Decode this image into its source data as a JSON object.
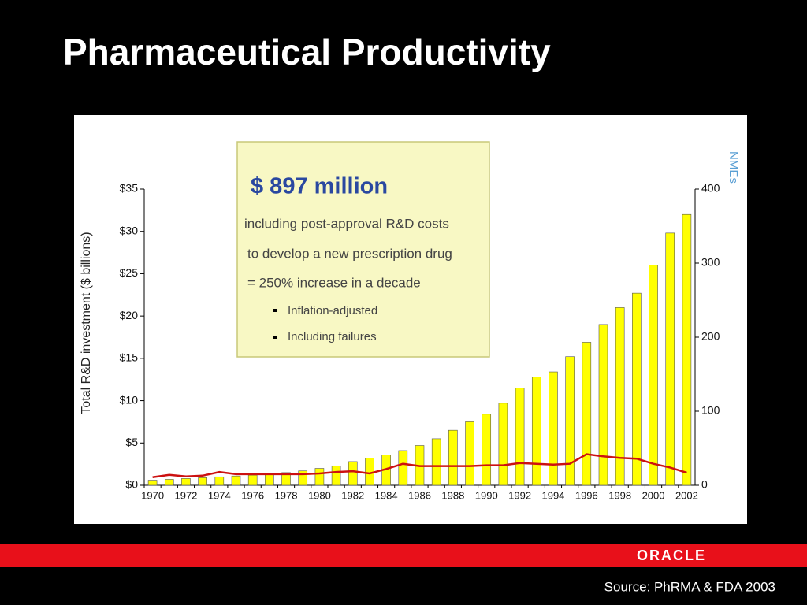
{
  "chart_data": {
    "type": "bar",
    "title": "Pharmaceutical Productivity",
    "y_label": "Total R&D investment ($ billions)",
    "y2_label": "NMEs",
    "categories": [
      "1970",
      null,
      "1972",
      null,
      "1974",
      null,
      "1976",
      null,
      "1978",
      null,
      "1980",
      null,
      "1982",
      null,
      "1984",
      null,
      "1986",
      null,
      "1988",
      null,
      "1990",
      null,
      "1992",
      null,
      "1994",
      null,
      "1996",
      null,
      "1998",
      null,
      "2000",
      null,
      "2002"
    ],
    "series": [
      {
        "name": "R&D investment",
        "type": "bar",
        "color": "#ffff00",
        "values": [
          0.6,
          0.7,
          0.8,
          0.9,
          1.0,
          1.1,
          1.2,
          1.3,
          1.5,
          1.7,
          2.0,
          2.3,
          2.8,
          3.2,
          3.6,
          4.1,
          4.7,
          5.5,
          6.5,
          7.5,
          8.4,
          9.7,
          11.5,
          12.8,
          13.4,
          15.2,
          16.9,
          19.0,
          21.0,
          22.7,
          26.0,
          29.8,
          32.0
        ]
      },
      {
        "name": "NMEs",
        "type": "line",
        "axis": "y2",
        "color": "#cc1111",
        "values": [
          11,
          14,
          12,
          13,
          18,
          15,
          15,
          15,
          15,
          15,
          16,
          18,
          19,
          16,
          22,
          29,
          26,
          26,
          26,
          26,
          27,
          27,
          30,
          29,
          28,
          29,
          42,
          39,
          37,
          36,
          29,
          24,
          17
        ]
      }
    ],
    "ylim": [
      0,
      35
    ],
    "yticks": [
      {
        "value": 0,
        "label": "$0"
      },
      {
        "value": 5,
        "label": "$5"
      },
      {
        "value": 10,
        "label": "$10"
      },
      {
        "value": 15,
        "label": "$15"
      },
      {
        "value": 20,
        "label": "$20"
      },
      {
        "value": 25,
        "label": "$25"
      },
      {
        "value": 30,
        "label": "$30"
      },
      {
        "value": 35,
        "label": "$35"
      }
    ],
    "y2lim": [
      0,
      400
    ],
    "y2ticks": [
      0,
      100,
      200,
      300,
      400
    ],
    "annotation": {
      "headline": "$ 897 million",
      "lines": [
        "including post-approval R&D costs",
        "to develop a new prescription drug",
        "= 250% increase in a decade"
      ],
      "bullets": [
        "Inflation-adjusted",
        "Including failures"
      ]
    }
  },
  "footer": {
    "logo": "ORACLE",
    "source": "Source: PhRMA & FDA 2003"
  }
}
